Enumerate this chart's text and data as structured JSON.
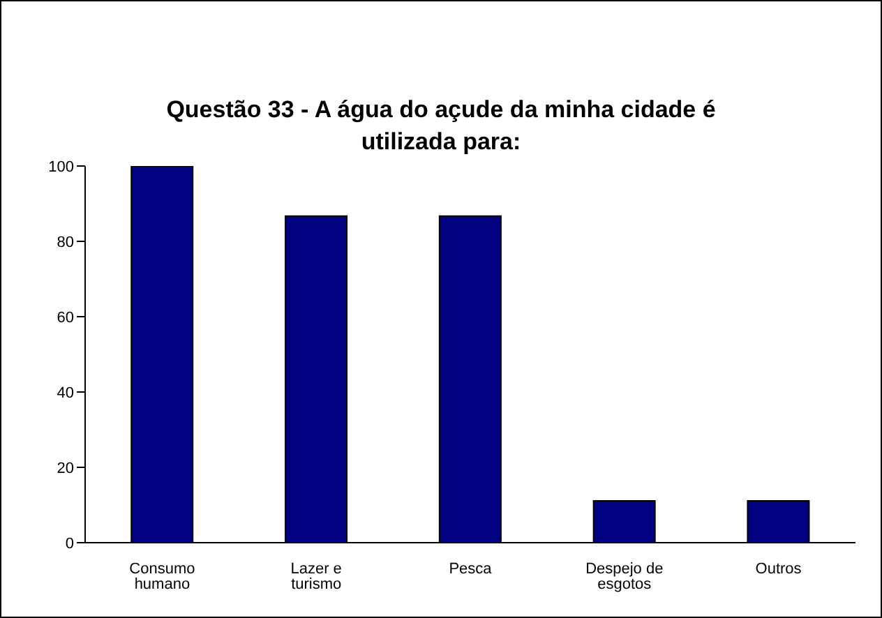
{
  "chart_data": {
    "type": "bar",
    "title": "Questão 33 - A água do açude da minha cidade é utilizada para:",
    "categories": [
      "Consumo humano",
      "Lazer e turismo",
      "Pesca",
      "Despejo de esgotos",
      "Outros"
    ],
    "values": [
      100,
      86.7,
      86.7,
      11.1,
      11.1
    ],
    "color": "#000080",
    "ylim": [
      0,
      100
    ],
    "yticks": [
      0,
      20,
      40,
      60,
      80,
      100
    ],
    "grid": false,
    "legend": false
  }
}
